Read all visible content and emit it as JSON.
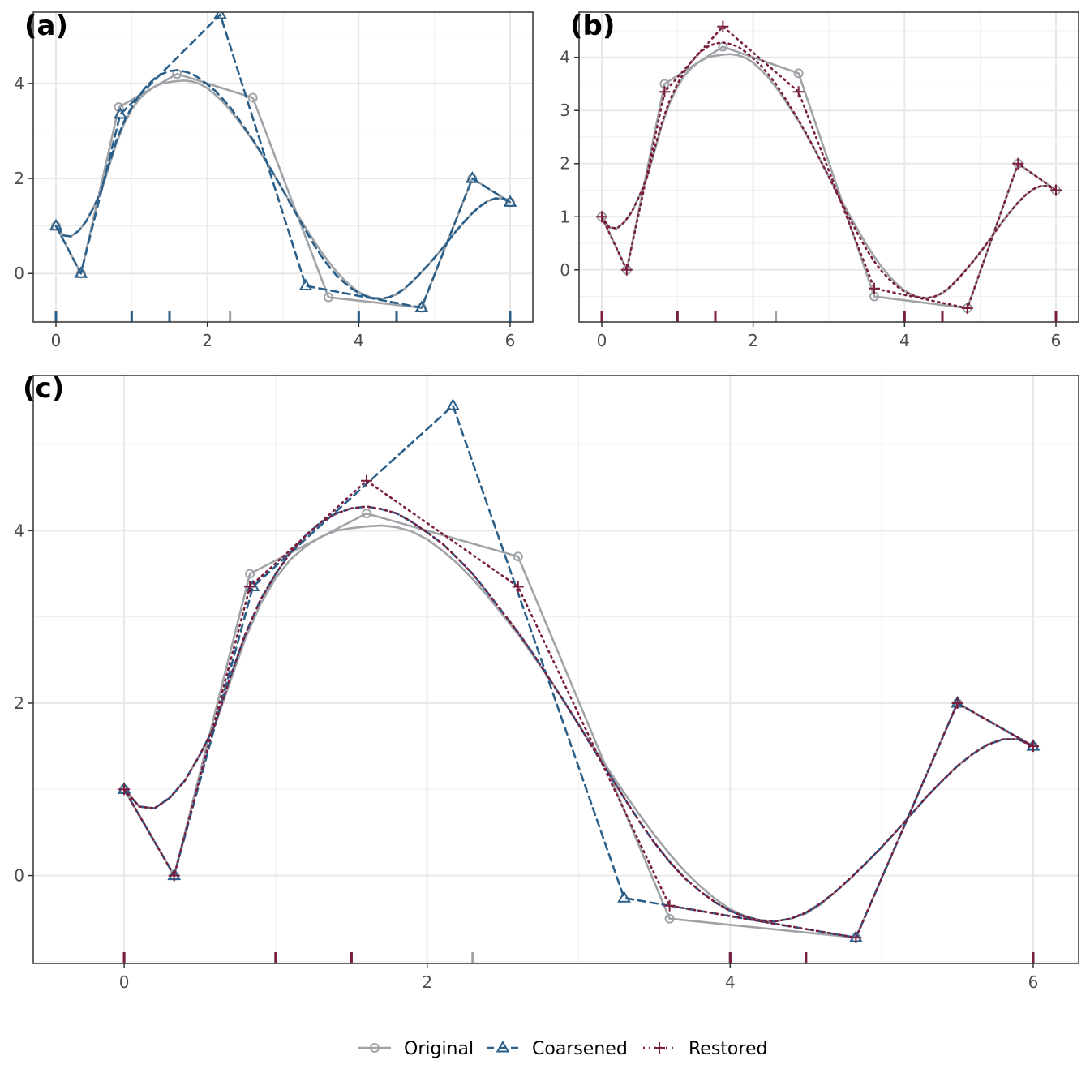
{
  "panels": [
    {
      "label": "(a)",
      "series": [
        "original",
        "coarsened"
      ],
      "xlim": [
        -0.3,
        6.3
      ],
      "ylim": [
        -1.02,
        5.5
      ],
      "xticks": [
        0,
        2,
        4,
        6
      ],
      "yticks": [
        0,
        2,
        4
      ]
    },
    {
      "label": "(b)",
      "series": [
        "original",
        "restored"
      ],
      "xlim": [
        -0.3,
        6.3
      ],
      "ylim": [
        -0.98,
        4.85
      ],
      "xticks": [
        0,
        2,
        4,
        6
      ],
      "yticks": [
        0,
        1,
        2,
        3,
        4
      ]
    },
    {
      "label": "(c)",
      "series": [
        "original",
        "coarsened",
        "restored"
      ],
      "xlim": [
        -0.6,
        6.3
      ],
      "ylim": [
        -1.02,
        5.8
      ],
      "xticks": [
        0,
        2,
        4,
        6
      ],
      "yticks": [
        0,
        2,
        4
      ]
    }
  ],
  "legend": {
    "position": "bottom",
    "items": [
      {
        "key": "original",
        "label": "Original"
      },
      {
        "key": "coarsened",
        "label": "Coarsened"
      },
      {
        "key": "restored",
        "label": "Restored"
      }
    ]
  },
  "chart_data": {
    "type": "line",
    "grid": true,
    "series": [
      {
        "key": "original",
        "name": "Original",
        "color": "#a0a4a8",
        "linestyle": "solid",
        "marker": "circle",
        "polygon": [
          [
            0,
            1.0
          ],
          [
            0.33,
            0.0
          ],
          [
            0.83,
            3.5
          ],
          [
            1.6,
            4.2
          ],
          [
            2.6,
            3.7
          ],
          [
            3.6,
            -0.5
          ],
          [
            4.83,
            -0.72
          ],
          [
            5.5,
            2.0
          ],
          [
            6.0,
            1.5
          ]
        ],
        "curve": [
          [
            0,
            1.0
          ],
          [
            0.1,
            0.8
          ],
          [
            0.2,
            0.78
          ],
          [
            0.3,
            0.9
          ],
          [
            0.4,
            1.1
          ],
          [
            0.5,
            1.4
          ],
          [
            0.6,
            1.75
          ],
          [
            0.7,
            2.25
          ],
          [
            0.8,
            2.75
          ],
          [
            0.9,
            3.15
          ],
          [
            1.0,
            3.45
          ],
          [
            1.1,
            3.67
          ],
          [
            1.2,
            3.82
          ],
          [
            1.3,
            3.93
          ],
          [
            1.4,
            4.0
          ],
          [
            1.5,
            4.03
          ],
          [
            1.6,
            4.05
          ],
          [
            1.7,
            4.06
          ],
          [
            1.8,
            4.04
          ],
          [
            1.9,
            3.99
          ],
          [
            2.0,
            3.9
          ],
          [
            2.1,
            3.77
          ],
          [
            2.2,
            3.62
          ],
          [
            2.3,
            3.44
          ],
          [
            2.4,
            3.24
          ],
          [
            2.5,
            3.02
          ],
          [
            2.6,
            2.8
          ],
          [
            2.7,
            2.55
          ],
          [
            2.8,
            2.3
          ],
          [
            2.9,
            2.03
          ],
          [
            3.0,
            1.75
          ],
          [
            3.1,
            1.48
          ],
          [
            3.2,
            1.22
          ],
          [
            3.3,
            0.96
          ],
          [
            3.4,
            0.71
          ],
          [
            3.5,
            0.47
          ],
          [
            3.6,
            0.25
          ],
          [
            3.7,
            0.05
          ],
          [
            3.8,
            -0.12
          ],
          [
            3.9,
            -0.27
          ],
          [
            4.0,
            -0.39
          ],
          [
            4.1,
            -0.47
          ],
          [
            4.2,
            -0.52
          ],
          [
            4.3,
            -0.53
          ],
          [
            4.4,
            -0.5
          ],
          [
            4.5,
            -0.44
          ],
          [
            4.6,
            -0.33
          ],
          [
            4.7,
            -0.18
          ],
          [
            4.8,
            -0.02
          ],
          [
            4.9,
            0.15
          ],
          [
            5.0,
            0.33
          ],
          [
            5.1,
            0.52
          ],
          [
            5.2,
            0.72
          ],
          [
            5.3,
            0.92
          ],
          [
            5.4,
            1.1
          ],
          [
            5.5,
            1.27
          ],
          [
            5.6,
            1.41
          ],
          [
            5.7,
            1.52
          ],
          [
            5.8,
            1.58
          ],
          [
            5.9,
            1.58
          ],
          [
            6.0,
            1.5
          ]
        ],
        "ticks": [
          0,
          1,
          1.5,
          2.3,
          4,
          4.5,
          6
        ]
      },
      {
        "key": "coarsened",
        "name": "Coarsened",
        "color": "#2a5f8a",
        "linestyle": "dashed",
        "marker": "triangle",
        "polygon": [
          [
            0,
            1.0
          ],
          [
            0.33,
            0.0
          ],
          [
            0.85,
            3.35
          ],
          [
            2.17,
            5.45
          ],
          [
            3.3,
            -0.26
          ],
          [
            4.83,
            -0.72
          ],
          [
            5.5,
            2.0
          ],
          [
            6.0,
            1.5
          ]
        ],
        "curve": [
          [
            0,
            1.0
          ],
          [
            0.1,
            0.8
          ],
          [
            0.2,
            0.78
          ],
          [
            0.3,
            0.9
          ],
          [
            0.4,
            1.1
          ],
          [
            0.5,
            1.4
          ],
          [
            0.6,
            1.75
          ],
          [
            0.7,
            2.3
          ],
          [
            0.8,
            2.8
          ],
          [
            0.9,
            3.2
          ],
          [
            1.0,
            3.5
          ],
          [
            1.1,
            3.75
          ],
          [
            1.2,
            3.95
          ],
          [
            1.3,
            4.1
          ],
          [
            1.4,
            4.2
          ],
          [
            1.5,
            4.26
          ],
          [
            1.6,
            4.28
          ],
          [
            1.7,
            4.25
          ],
          [
            1.8,
            4.2
          ],
          [
            1.9,
            4.1
          ],
          [
            2.0,
            3.98
          ],
          [
            2.1,
            3.85
          ],
          [
            2.2,
            3.68
          ],
          [
            2.3,
            3.5
          ],
          [
            2.4,
            3.28
          ],
          [
            2.5,
            3.05
          ],
          [
            2.6,
            2.82
          ],
          [
            2.7,
            2.57
          ],
          [
            2.8,
            2.3
          ],
          [
            2.9,
            2.03
          ],
          [
            3.0,
            1.75
          ],
          [
            3.1,
            1.46
          ],
          [
            3.2,
            1.18
          ],
          [
            3.3,
            0.9
          ],
          [
            3.4,
            0.63
          ],
          [
            3.5,
            0.38
          ],
          [
            3.6,
            0.16
          ],
          [
            3.7,
            -0.03
          ],
          [
            3.8,
            -0.18
          ],
          [
            3.9,
            -0.31
          ],
          [
            4.0,
            -0.41
          ],
          [
            4.1,
            -0.48
          ],
          [
            4.2,
            -0.52
          ],
          [
            4.3,
            -0.53
          ],
          [
            4.4,
            -0.5
          ],
          [
            4.5,
            -0.43
          ],
          [
            4.6,
            -0.32
          ],
          [
            4.7,
            -0.18
          ],
          [
            4.8,
            -0.02
          ],
          [
            4.9,
            0.15
          ],
          [
            5.0,
            0.33
          ],
          [
            5.1,
            0.52
          ],
          [
            5.2,
            0.72
          ],
          [
            5.3,
            0.92
          ],
          [
            5.4,
            1.1
          ],
          [
            5.5,
            1.27
          ],
          [
            5.6,
            1.41
          ],
          [
            5.7,
            1.52
          ],
          [
            5.8,
            1.58
          ],
          [
            5.9,
            1.58
          ],
          [
            6.0,
            1.5
          ]
        ],
        "ticks": [
          0,
          1,
          1.5,
          4,
          4.5,
          6
        ]
      },
      {
        "key": "restored",
        "name": "Restored",
        "color": "#7a1e40",
        "linestyle": "dotted",
        "marker": "plus",
        "polygon": [
          [
            0,
            1.0
          ],
          [
            0.33,
            0.0
          ],
          [
            0.83,
            3.35
          ],
          [
            1.6,
            4.58
          ],
          [
            2.6,
            3.35
          ],
          [
            3.6,
            -0.35
          ],
          [
            4.83,
            -0.72
          ],
          [
            5.5,
            2.0
          ],
          [
            6.0,
            1.5
          ]
        ],
        "curve": [
          [
            0,
            1.0
          ],
          [
            0.1,
            0.8
          ],
          [
            0.2,
            0.78
          ],
          [
            0.3,
            0.9
          ],
          [
            0.4,
            1.1
          ],
          [
            0.5,
            1.4
          ],
          [
            0.6,
            1.75
          ],
          [
            0.7,
            2.3
          ],
          [
            0.8,
            2.8
          ],
          [
            0.9,
            3.2
          ],
          [
            1.0,
            3.5
          ],
          [
            1.1,
            3.75
          ],
          [
            1.2,
            3.95
          ],
          [
            1.3,
            4.1
          ],
          [
            1.4,
            4.2
          ],
          [
            1.5,
            4.26
          ],
          [
            1.6,
            4.28
          ],
          [
            1.7,
            4.25
          ],
          [
            1.8,
            4.2
          ],
          [
            1.9,
            4.1
          ],
          [
            2.0,
            3.98
          ],
          [
            2.1,
            3.85
          ],
          [
            2.2,
            3.68
          ],
          [
            2.3,
            3.5
          ],
          [
            2.4,
            3.28
          ],
          [
            2.5,
            3.05
          ],
          [
            2.6,
            2.82
          ],
          [
            2.7,
            2.57
          ],
          [
            2.8,
            2.3
          ],
          [
            2.9,
            2.03
          ],
          [
            3.0,
            1.75
          ],
          [
            3.1,
            1.46
          ],
          [
            3.2,
            1.18
          ],
          [
            3.3,
            0.9
          ],
          [
            3.4,
            0.63
          ],
          [
            3.5,
            0.38
          ],
          [
            3.6,
            0.16
          ],
          [
            3.7,
            -0.03
          ],
          [
            3.8,
            -0.18
          ],
          [
            3.9,
            -0.31
          ],
          [
            4.0,
            -0.41
          ],
          [
            4.1,
            -0.48
          ],
          [
            4.2,
            -0.52
          ],
          [
            4.3,
            -0.53
          ],
          [
            4.4,
            -0.5
          ],
          [
            4.5,
            -0.43
          ],
          [
            4.6,
            -0.32
          ],
          [
            4.7,
            -0.18
          ],
          [
            4.8,
            -0.02
          ],
          [
            4.9,
            0.15
          ],
          [
            5.0,
            0.33
          ],
          [
            5.1,
            0.52
          ],
          [
            5.2,
            0.72
          ],
          [
            5.3,
            0.92
          ],
          [
            5.4,
            1.1
          ],
          [
            5.5,
            1.27
          ],
          [
            5.6,
            1.41
          ],
          [
            5.7,
            1.52
          ],
          [
            5.8,
            1.58
          ],
          [
            5.9,
            1.58
          ],
          [
            6.0,
            1.5
          ]
        ],
        "ticks": [
          0,
          1,
          1.5,
          4,
          4.5,
          6
        ]
      }
    ]
  }
}
